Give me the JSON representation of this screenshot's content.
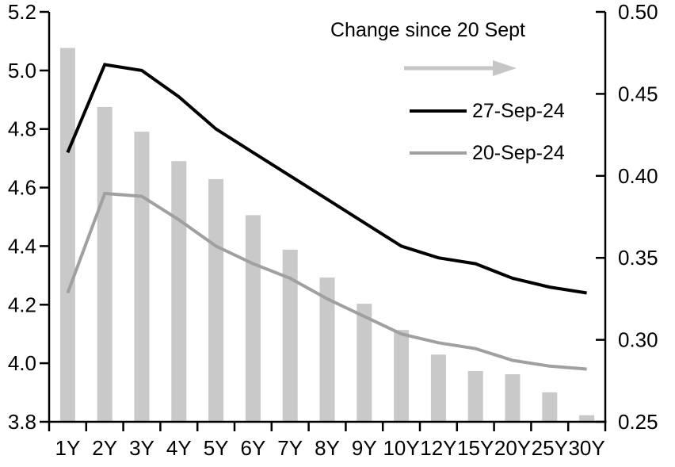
{
  "chart_data": {
    "type": "combo-bar-line",
    "title": "",
    "categories": [
      "1Y",
      "2Y",
      "3Y",
      "4Y",
      "5Y",
      "6Y",
      "7Y",
      "8Y",
      "9Y",
      "10Y",
      "12Y",
      "15Y",
      "20Y",
      "25Y",
      "30Y"
    ],
    "series": [
      {
        "name": "Change since 20 Sept",
        "type": "bar",
        "axis": "right",
        "color": "#c9c9c9",
        "values": [
          0.478,
          0.442,
          0.427,
          0.409,
          0.398,
          0.376,
          0.355,
          0.338,
          0.322,
          0.306,
          0.291,
          0.281,
          0.279,
          0.268,
          0.254
        ]
      },
      {
        "name": "27-Sep-24",
        "type": "line",
        "axis": "left",
        "color": "#000000",
        "values": [
          4.72,
          5.02,
          5.0,
          4.91,
          4.8,
          4.72,
          4.64,
          4.56,
          4.48,
          4.4,
          4.36,
          4.34,
          4.29,
          4.26,
          4.24
        ]
      },
      {
        "name": "20-Sep-24",
        "type": "line",
        "axis": "left",
        "color": "#a0a0a0",
        "values": [
          4.24,
          4.58,
          4.57,
          4.49,
          4.4,
          4.34,
          4.29,
          4.22,
          4.16,
          4.1,
          4.07,
          4.05,
          4.01,
          3.99,
          3.98
        ]
      }
    ],
    "left_axis": {
      "min": 3.8,
      "max": 5.2,
      "tick_step": 0.2,
      "ticks": [
        "5.2",
        "5.0",
        "4.8",
        "4.6",
        "4.4",
        "4.2",
        "4.0",
        "3.8"
      ]
    },
    "right_axis": {
      "min": 0.25,
      "max": 0.5,
      "tick_step": 0.05,
      "ticks": [
        "0.50",
        "0.45",
        "0.40",
        "0.35",
        "0.30",
        "0.25"
      ]
    },
    "legend": {
      "bar_label": "Change since 20 Sept",
      "line1_label": "27-Sep-24",
      "line2_label": "20-Sep-24",
      "arrow_color": "#c6c6c6",
      "position": "inside-top-right"
    },
    "grid": false,
    "plot_bg": "#ffffff"
  }
}
